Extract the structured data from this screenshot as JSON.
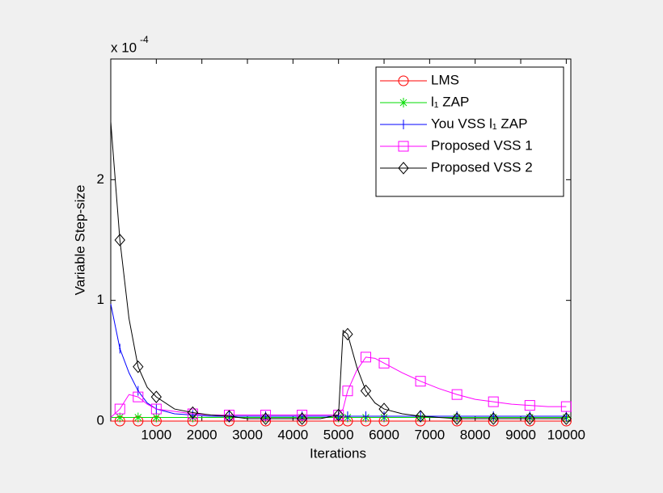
{
  "chart_data": {
    "type": "line",
    "xlabel": "Iterations",
    "ylabel": "Variable Step-size",
    "y_multiplier": "x 10",
    "y_multiplier_exponent": "-4",
    "x": [
      0,
      200,
      400,
      600,
      800,
      1000,
      1400,
      1800,
      2200,
      2600,
      3000,
      3400,
      3800,
      4200,
      4600,
      5000,
      5100,
      5200,
      5400,
      5600,
      5800,
      6000,
      6400,
      6800,
      7200,
      7600,
      8000,
      8400,
      8800,
      9200,
      9600,
      10000
    ],
    "series": [
      {
        "name": "LMS",
        "color": "#ff0000",
        "marker": "circle",
        "values": [
          0,
          0,
          0,
          0,
          0,
          0,
          0,
          0,
          0,
          0,
          0,
          0,
          0,
          0,
          0,
          0,
          0,
          0,
          0,
          0,
          0,
          0,
          0,
          0,
          0,
          0,
          0,
          0,
          0,
          0,
          0,
          0
        ]
      },
      {
        "name": "l₁ ZAP",
        "color": "#00dd00",
        "marker": "star",
        "values": [
          0.03,
          0.03,
          0.03,
          0.03,
          0.03,
          0.03,
          0.03,
          0.03,
          0.03,
          0.03,
          0.03,
          0.03,
          0.03,
          0.03,
          0.03,
          0.03,
          0.03,
          0.03,
          0.03,
          0.03,
          0.03,
          0.03,
          0.03,
          0.03,
          0.03,
          0.03,
          0.03,
          0.03,
          0.03,
          0.03,
          0.03,
          0.03
        ]
      },
      {
        "name": "You VSS l₁ ZAP",
        "color": "#0000ff",
        "marker": "plus",
        "values": [
          0.97,
          0.6,
          0.4,
          0.25,
          0.15,
          0.1,
          0.06,
          0.05,
          0.04,
          0.04,
          0.04,
          0.04,
          0.04,
          0.04,
          0.04,
          0.04,
          0.04,
          0.04,
          0.04,
          0.04,
          0.04,
          0.04,
          0.04,
          0.04,
          0.04,
          0.04,
          0.04,
          0.04,
          0.04,
          0.04,
          0.04,
          0.04
        ]
      },
      {
        "name": "Proposed VSS 1",
        "color": "#ff00ff",
        "marker": "square",
        "values": [
          0.03,
          0.1,
          0.22,
          0.2,
          0.14,
          0.1,
          0.08,
          0.06,
          0.05,
          0.05,
          0.05,
          0.05,
          0.05,
          0.05,
          0.05,
          0.05,
          0.1,
          0.25,
          0.42,
          0.53,
          0.52,
          0.48,
          0.4,
          0.33,
          0.27,
          0.22,
          0.18,
          0.16,
          0.14,
          0.13,
          0.12,
          0.12
        ]
      },
      {
        "name": "Proposed VSS 2",
        "color": "#000000",
        "marker": "diamond",
        "values": [
          2.48,
          1.5,
          0.85,
          0.45,
          0.28,
          0.2,
          0.1,
          0.07,
          0.05,
          0.04,
          0.02,
          0.02,
          0.02,
          0.02,
          0.02,
          0.05,
          0.75,
          0.72,
          0.45,
          0.25,
          0.15,
          0.1,
          0.06,
          0.04,
          0.03,
          0.02,
          0.02,
          0.02,
          0.02,
          0.02,
          0.02,
          0.02
        ]
      }
    ],
    "xlim": [
      0,
      10100
    ],
    "ylim": [
      0,
      3
    ],
    "xticks": [
      1000,
      2000,
      3000,
      4000,
      5000,
      6000,
      7000,
      8000,
      9000,
      10000
    ],
    "yticks": [
      0,
      1,
      2
    ],
    "legend": "northeast",
    "grid": false
  }
}
